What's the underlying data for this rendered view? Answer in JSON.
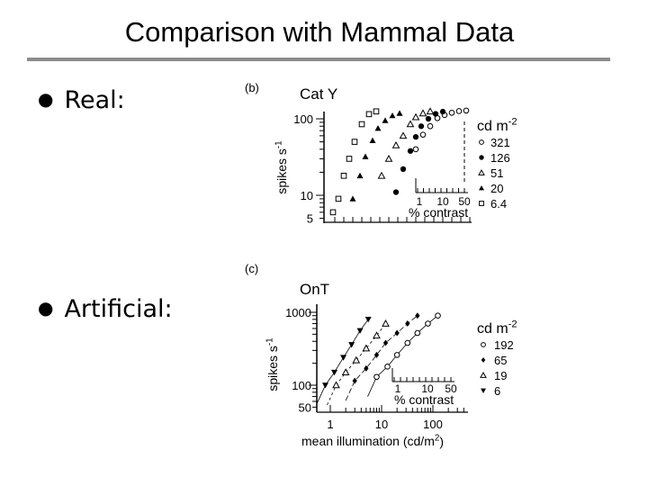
{
  "slide": {
    "title": "Comparison with Mammal Data",
    "bullets": [
      "Real:",
      "Artificial:"
    ]
  },
  "chart_data": [
    {
      "panel": "(b)",
      "type": "scatter",
      "title": "Cat Y",
      "xlabel": "",
      "ylabel": "spikes s-1",
      "y_scale": "log",
      "y_ticks": [
        {
          "value": 5,
          "label": "5"
        },
        {
          "value": 10,
          "label": "10"
        },
        {
          "value": 100,
          "label": "100"
        }
      ],
      "legend_title": "cd m-2",
      "inset": {
        "xlabel": "% contrast",
        "ticks": [
          "1",
          "10",
          "50"
        ]
      },
      "series": [
        {
          "name": "321",
          "marker": "open-circle",
          "x": [
            1,
            2,
            3,
            4,
            5,
            6,
            7,
            8
          ],
          "y": [
            40,
            62,
            80,
            102,
            112,
            120,
            126,
            128
          ]
        },
        {
          "name": "126",
          "marker": "filled-circle",
          "x": [
            1,
            2,
            3,
            4,
            5,
            6,
            7,
            8
          ],
          "y": [
            11,
            22,
            38,
            58,
            80,
            100,
            116,
            124
          ]
        },
        {
          "name": "51",
          "marker": "open-triangle",
          "x": [
            1,
            2,
            3,
            4,
            5,
            6,
            7,
            8
          ],
          "y": [
            18,
            30,
            45,
            60,
            85,
            105,
            118,
            125
          ]
        },
        {
          "name": "20",
          "marker": "filled-triangle",
          "x": [
            1,
            2,
            3,
            4,
            5,
            6,
            7,
            8
          ],
          "y": [
            9,
            18,
            32,
            52,
            75,
            95,
            110,
            118
          ]
        },
        {
          "name": "6.4",
          "marker": "open-square",
          "x": [
            1,
            2,
            3,
            4,
            5,
            6,
            7,
            8
          ],
          "y": [
            6,
            9,
            18,
            30,
            50,
            85,
            115,
            125
          ]
        }
      ]
    },
    {
      "panel": "(c)",
      "type": "scatter",
      "title": "OnT",
      "xlabel": "mean illumination (cd/m2)",
      "ylabel": "spikes s-1",
      "x_scale": "log",
      "y_scale": "log",
      "x_ticks": [
        {
          "value": 1,
          "label": "1"
        },
        {
          "value": 10,
          "label": "10"
        },
        {
          "value": 100,
          "label": "100"
        }
      ],
      "y_ticks": [
        {
          "value": 50,
          "label": "50"
        },
        {
          "value": 100,
          "label": "100"
        },
        {
          "value": 1000,
          "label": "1000"
        }
      ],
      "legend_title": "cd m-2",
      "inset": {
        "xlabel": "% contrast",
        "ticks": [
          "1",
          "10",
          "50"
        ]
      },
      "series": [
        {
          "name": "192",
          "marker": "open-circle",
          "x": [
            8,
            13,
            20,
            32,
            50,
            80,
            125
          ],
          "y": [
            130,
            180,
            260,
            380,
            520,
            700,
            900
          ]
        },
        {
          "name": "65",
          "marker": "filled-diamond",
          "x": [
            3,
            5,
            8,
            12,
            20,
            32,
            50
          ],
          "y": [
            115,
            170,
            260,
            380,
            520,
            700,
            900
          ]
        },
        {
          "name": "19",
          "marker": "open-triangle",
          "x": [
            1.3,
            2,
            3.2,
            5,
            8,
            12
          ],
          "y": [
            100,
            150,
            220,
            320,
            480,
            700
          ]
        },
        {
          "name": "6",
          "marker": "filled-triangle-down",
          "x": [
            0.8,
            1.2,
            1.8,
            2.6,
            3.8,
            5.5
          ],
          "y": [
            100,
            150,
            240,
            360,
            560,
            800
          ]
        }
      ]
    }
  ]
}
